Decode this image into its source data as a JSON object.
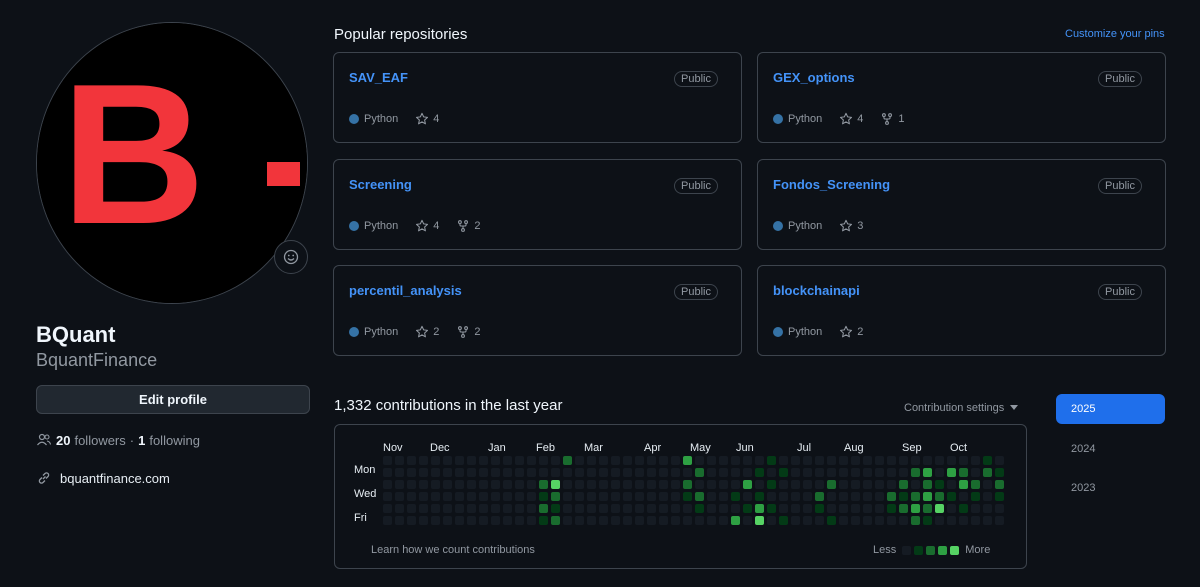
{
  "profile": {
    "full_name": "BQuant",
    "username": "BquantFinance",
    "edit_label": "Edit profile",
    "followers_count": "20",
    "followers_label": "followers",
    "separator": "·",
    "following_count": "1",
    "following_label": "following",
    "website": "bquantfinance.com",
    "avatar_text": "B",
    "avatar_color": "#f2353b"
  },
  "pinned": {
    "title": "Popular repositories",
    "customize_label": "Customize your pins",
    "repos": [
      {
        "name": "SAV_EAF",
        "visibility": "Public",
        "language": "Python",
        "stars": "4",
        "forks": ""
      },
      {
        "name": "GEX_options",
        "visibility": "Public",
        "language": "Python",
        "stars": "4",
        "forks": "1"
      },
      {
        "name": "Screening",
        "visibility": "Public",
        "language": "Python",
        "stars": "4",
        "forks": "2"
      },
      {
        "name": "Fondos_Screening",
        "visibility": "Public",
        "language": "Python",
        "stars": "3",
        "forks": ""
      },
      {
        "name": "percentil_analysis",
        "visibility": "Public",
        "language": "Python",
        "stars": "2",
        "forks": "2"
      },
      {
        "name": "blockchainapi",
        "visibility": "Public",
        "language": "Python",
        "stars": "2",
        "forks": ""
      }
    ]
  },
  "contributions": {
    "title": "1,332 contributions in the last year",
    "settings_label": "Contribution settings",
    "months": [
      "Nov",
      "Dec",
      "Jan",
      "Feb",
      "Mar",
      "Apr",
      "May",
      "Jun",
      "Jul",
      "Aug",
      "Sep",
      "Oct"
    ],
    "weekdays": [
      "Mon",
      "Wed",
      "Fri"
    ],
    "learn_label": "Learn how we count contributions",
    "legend_less": "Less",
    "legend_more": "More",
    "level_colors": [
      "#151b23",
      "#033a16",
      "#196c2e",
      "#2ea043",
      "#56d364"
    ]
  },
  "years": {
    "items": [
      "2025",
      "2024",
      "2023"
    ],
    "selected": "2025"
  }
}
